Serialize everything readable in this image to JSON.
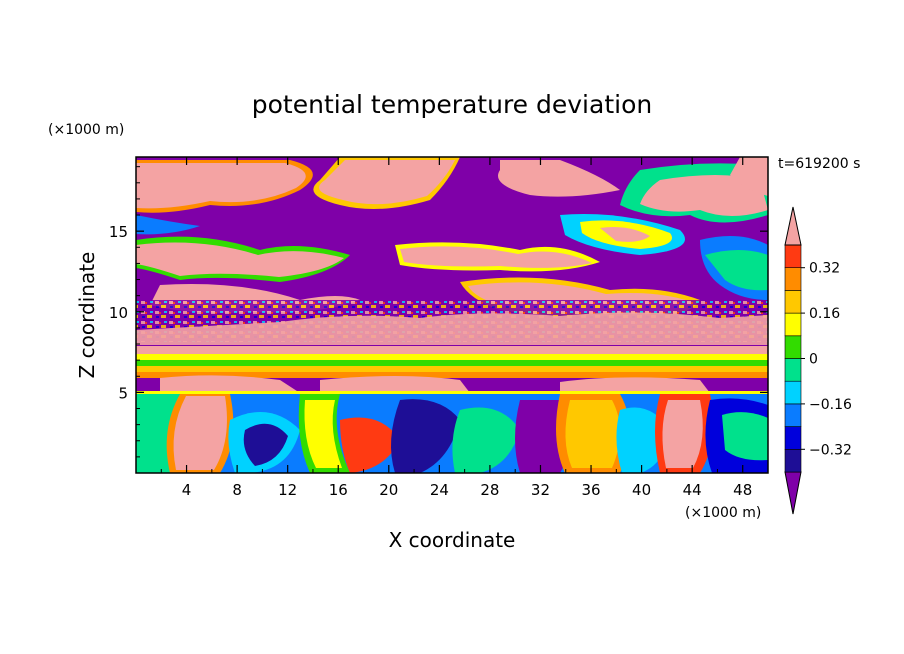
{
  "chart_data": {
    "type": "heatmap",
    "title": "potential temperature deviation",
    "xlabel": "X coordinate",
    "ylabel": "Z coordinate",
    "x_unit_label": "(×1000 m)",
    "y_unit_label": "(×1000 m)",
    "time_label": "t=619200 s",
    "xlim": [
      0,
      50
    ],
    "ylim": [
      0,
      19.6
    ],
    "x_ticks": [
      4,
      8,
      12,
      16,
      20,
      24,
      28,
      32,
      36,
      40,
      44,
      48
    ],
    "y_ticks": [
      5,
      10,
      15
    ],
    "colorbar": {
      "levels": [
        -0.4,
        -0.32,
        -0.24,
        -0.16,
        -0.08,
        0,
        0.08,
        0.16,
        0.24,
        0.32,
        0.4
      ],
      "tick_labels": [
        "0.32",
        "0.16",
        "0",
        "−0.16",
        "−0.32"
      ],
      "tick_values": [
        0.32,
        0.16,
        0,
        -0.16,
        -0.32
      ],
      "colors": [
        "#7f00a8",
        "#1e0e96",
        "#0000dc",
        "#0a7cff",
        "#00d2ff",
        "#00e18c",
        "#32dc00",
        "#ffff00",
        "#ffc800",
        "#ff8c00",
        "#ff3a12",
        "#f4a3a3"
      ],
      "extend": "both"
    }
  }
}
